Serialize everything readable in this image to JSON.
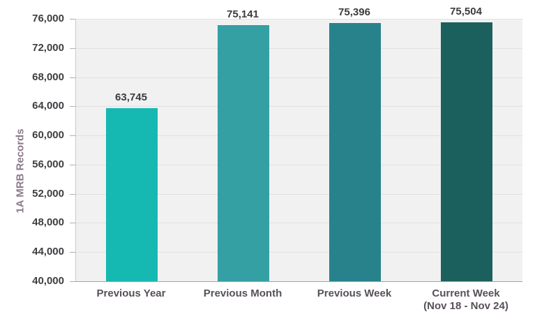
{
  "page": {
    "background_color": "#ffffff"
  },
  "chart_data": {
    "type": "bar",
    "title": "",
    "xlabel": "",
    "ylabel": "1A MRB Records",
    "categories": [
      "Previous Year",
      "Previous Month",
      "Previous Week",
      "Current Week\n(Nov 18 - Nov 24)"
    ],
    "values": [
      63745,
      75141,
      75396,
      75504
    ],
    "value_labels": [
      "63,745",
      "75,141",
      "75,396",
      "75,504"
    ],
    "bar_colors": [
      "#16b8b2",
      "#35a0a3",
      "#27828c",
      "#1c605d"
    ],
    "ylim": [
      40000,
      76000
    ],
    "ytick_step": 4000,
    "ytick_labels": [
      "40,000",
      "44,000",
      "48,000",
      "52,000",
      "56,000",
      "60,000",
      "64,000",
      "68,000",
      "72,000",
      "76,000"
    ],
    "grid": true,
    "legend": "none",
    "plot_background_color": "#f1f1f2",
    "gridline_color": "#e1e1e3",
    "axis_line_color": "#9fa0a2",
    "tick_mark_color": "#aeaeb0",
    "ytick_label_color": "#3e3e42",
    "value_label_color": "#3c3c3e",
    "category_label_color": "#575059",
    "ylabel_color": "#8b798b"
  }
}
